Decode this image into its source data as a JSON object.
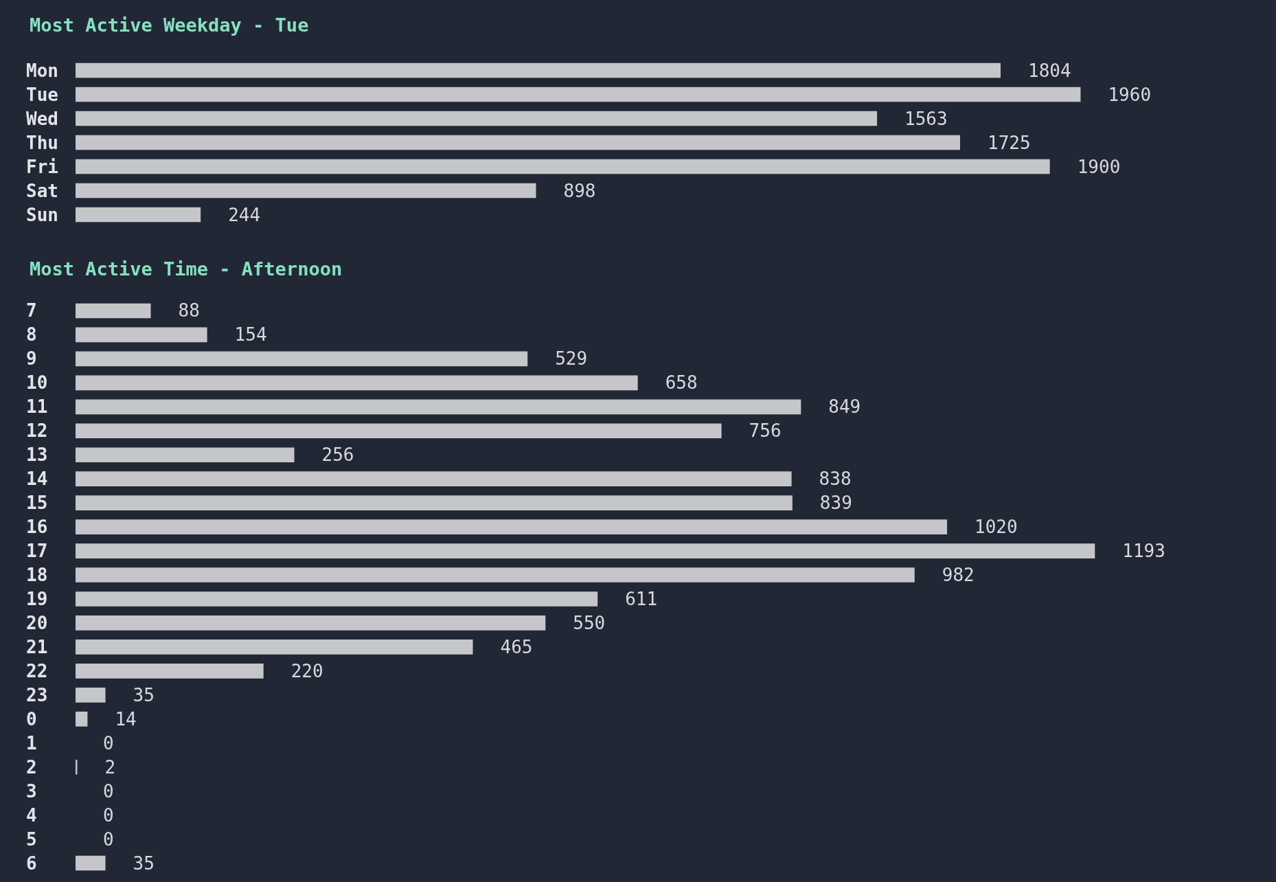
{
  "chart_data": [
    {
      "type": "bar",
      "title": "Most Active Weekday - Tue",
      "orientation": "horizontal",
      "data_labels": true,
      "color": "#c4c6c9",
      "categories": [
        "Mon",
        "Tue",
        "Wed",
        "Thu",
        "Fri",
        "Sat",
        "Sun"
      ],
      "values": [
        1804,
        1960,
        1563,
        1725,
        1900,
        898,
        244
      ]
    },
    {
      "type": "bar",
      "title": "Most Active Time - Afternoon",
      "orientation": "horizontal",
      "data_labels": true,
      "color": "#c4c6c9",
      "categories": [
        "7",
        "8",
        "9",
        "10",
        "11",
        "12",
        "13",
        "14",
        "15",
        "16",
        "17",
        "18",
        "19",
        "20",
        "21",
        "22",
        "23",
        "0",
        "1",
        "2",
        "3",
        "4",
        "5",
        "6"
      ],
      "values": [
        88,
        154,
        529,
        658,
        849,
        756,
        256,
        838,
        839,
        1020,
        1193,
        982,
        611,
        550,
        465,
        220,
        35,
        14,
        0,
        2,
        0,
        0,
        0,
        35
      ]
    }
  ]
}
